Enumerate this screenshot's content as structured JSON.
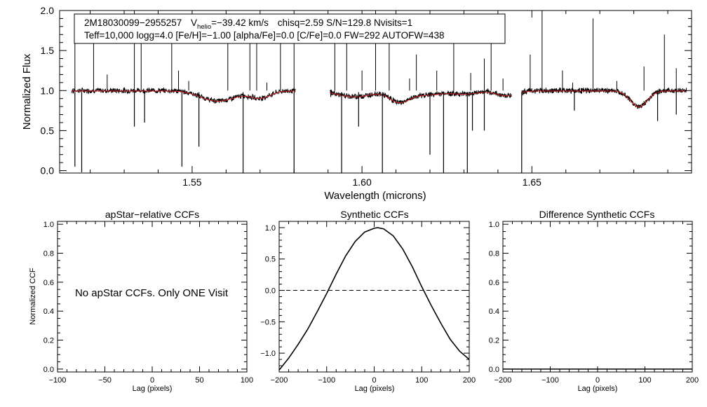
{
  "chart_data": [
    {
      "type": "line",
      "title": "",
      "xlabel": "Wavelength (microns)",
      "ylabel": "Normalized Flux",
      "xlim": [
        1.511,
        1.697
      ],
      "ylim": [
        -0.03,
        2.0
      ],
      "xticks": [
        1.55,
        1.6,
        1.65
      ],
      "xtick_labels": [
        "1.55",
        "1.60",
        "1.65"
      ],
      "yticks": [
        0.0,
        0.5,
        1.0,
        1.5,
        2.0
      ],
      "ytick_labels": [
        "0.0",
        "0.5",
        "1.0",
        "1.5",
        "2.0"
      ],
      "info_line1": {
        "star": "2M18030099−2955257",
        "v_label": "V",
        "v_sub": "helio",
        "v_value": "=−39.42 km/s",
        "rest": "chisq=2.59  S/N=129.8  Nvisits=1"
      },
      "info_line2": "Teff=10,000 logg=4.0 [Fe/H]=−1.00 [alpha/Fe]=0.0 [C/Fe]=0.0 FW=292 AUTOFW=438",
      "chips": [
        [
          1.5145,
          1.5805
        ],
        [
          1.5905,
          1.644
        ],
        [
          1.647,
          1.6955
        ]
      ],
      "series": [
        {
          "name": "observed spectrum",
          "color": "#000000",
          "continuum": 1.0,
          "broad_dips": [
            [
              1.5545,
              0.05,
              0.004
            ],
            [
              1.557,
              0.05,
              0.004
            ],
            [
              1.561,
              0.06,
              0.004
            ],
            [
              1.57,
              0.09,
              0.003
            ],
            [
              1.595,
              0.04,
              0.004
            ],
            [
              1.6,
              0.05,
              0.004
            ],
            [
              1.611,
              0.14,
              0.003
            ],
            [
              1.619,
              0.05,
              0.004
            ],
            [
              1.63,
              0.04,
              0.004
            ],
            [
              1.6425,
              0.06,
              0.003
            ],
            [
              1.6815,
              0.2,
              0.0025
            ]
          ],
          "spikes_up": [
            [
              1.5155,
              1.62
            ],
            [
              1.521,
              1.95
            ],
            [
              1.525,
              1.2
            ],
            [
              1.533,
              2.05
            ],
            [
              1.535,
              1.92
            ],
            [
              1.544,
              1.7
            ],
            [
              1.546,
              1.25
            ],
            [
              1.549,
              1.12
            ],
            [
              1.5605,
              1.72
            ],
            [
              1.567,
              1.9
            ],
            [
              1.569,
              1.9
            ],
            [
              1.572,
              1.1
            ],
            [
              1.576,
              1.65
            ],
            [
              1.58,
              1.9
            ],
            [
              1.592,
              1.8
            ],
            [
              1.5955,
              1.9
            ],
            [
              1.6,
              1.25
            ],
            [
              1.604,
              2.05
            ],
            [
              1.608,
              1.7
            ],
            [
              1.614,
              1.15
            ],
            [
              1.616,
              1.45
            ],
            [
              1.622,
              1.25
            ],
            [
              1.627,
              1.72
            ],
            [
              1.632,
              1.22
            ],
            [
              1.636,
              1.4
            ],
            [
              1.638,
              1.7
            ],
            [
              1.6415,
              1.15
            ],
            [
              1.6495,
              1.45
            ],
            [
              1.653,
              2.05
            ],
            [
              1.659,
              1.25
            ],
            [
              1.662,
              1.1
            ],
            [
              1.668,
              1.9
            ],
            [
              1.675,
              1.12
            ],
            [
              1.683,
              1.3
            ],
            [
              1.689,
              1.7
            ],
            [
              1.6925,
              1.28
            ]
          ],
          "spikes_down": [
            [
              1.5155,
              0.05
            ],
            [
              1.5175,
              -0.02
            ],
            [
              1.533,
              0.55
            ],
            [
              1.536,
              0.6
            ],
            [
              1.547,
              0.05
            ],
            [
              1.552,
              0.3
            ],
            [
              1.565,
              -0.05
            ],
            [
              1.58,
              -0.05
            ],
            [
              1.594,
              -0.05
            ],
            [
              1.599,
              0.55
            ],
            [
              1.606,
              -0.05
            ],
            [
              1.62,
              0.2
            ],
            [
              1.624,
              -0.03
            ],
            [
              1.631,
              -0.05
            ],
            [
              1.6325,
              0.5
            ],
            [
              1.636,
              0.5
            ],
            [
              1.647,
              -0.03
            ],
            [
              1.6625,
              0.75
            ],
            [
              1.687,
              0.62
            ],
            [
              1.6925,
              0.7
            ]
          ]
        },
        {
          "name": "synthetic model",
          "color": "#d92020"
        }
      ]
    },
    {
      "type": "line",
      "title": "apStar−relative CCFs",
      "xlabel": "Lag (pixels)",
      "ylabel": "Normalized CCF",
      "xlim": [
        -100,
        100
      ],
      "ylim": [
        -0.02,
        1.02
      ],
      "xticks": [
        -100,
        -50,
        0,
        50,
        100
      ],
      "xtick_labels": [
        "−100",
        "−50",
        "0",
        "50",
        "100"
      ],
      "yticks": [
        0.0,
        0.2,
        0.4,
        0.6,
        0.8,
        1.0
      ],
      "ytick_labels": [
        "0.0",
        "0.2",
        "0.4",
        "0.6",
        "0.8",
        "1.0"
      ],
      "series": [],
      "annotation": "No apStar CCFs.  Only ONE Visit"
    },
    {
      "type": "line",
      "title": "Synthetic CCFs",
      "xlabel": "Lag (pixels)",
      "ylabel": "",
      "xlim": [
        -200,
        200
      ],
      "ylim": [
        -1.3,
        1.1
      ],
      "xticks": [
        -200,
        -100,
        0,
        100,
        200
      ],
      "xtick_labels": [
        "−200",
        "−100",
        "0",
        "100",
        "200"
      ],
      "yticks": [
        -1.0,
        -0.5,
        0.0,
        0.5,
        1.0
      ],
      "ytick_labels": [
        "−1.0",
        "−0.5",
        "0.0",
        "0.5",
        "1.0"
      ],
      "reference_line": 0.0,
      "series": [
        {
          "name": "synthetic CCF",
          "color": "#000000",
          "x": [
            -200,
            -180,
            -160,
            -140,
            -120,
            -100,
            -80,
            -60,
            -40,
            -20,
            0,
            7,
            20,
            40,
            60,
            80,
            100,
            120,
            140,
            160,
            180,
            200
          ],
          "y": [
            -1.27,
            -1.08,
            -0.86,
            -0.62,
            -0.34,
            -0.05,
            0.26,
            0.55,
            0.78,
            0.93,
            0.99,
            1.0,
            0.98,
            0.87,
            0.66,
            0.38,
            0.06,
            -0.24,
            -0.52,
            -0.78,
            -0.97,
            -1.1
          ]
        }
      ]
    },
    {
      "type": "line",
      "title": "Difference Synthetic CCFs",
      "xlabel": "Lag (pixels)",
      "ylabel": "",
      "xlim": [
        -200,
        200
      ],
      "ylim": [
        -0.02,
        1.02
      ],
      "xticks": [
        -200,
        -100,
        0,
        100,
        200
      ],
      "xtick_labels": [
        "−200",
        "−100",
        "0",
        "100",
        "200"
      ],
      "yticks": [
        0.0,
        0.2,
        0.4,
        0.6,
        0.8,
        1.0
      ],
      "ytick_labels": [
        "0.0",
        "0.2",
        "0.4",
        "0.6",
        "0.8",
        "1.0"
      ],
      "series": [
        {
          "name": "difference CCF",
          "color": "#000000",
          "x": [
            -200,
            200
          ],
          "y": [
            0.0,
            0.0
          ]
        }
      ]
    }
  ]
}
